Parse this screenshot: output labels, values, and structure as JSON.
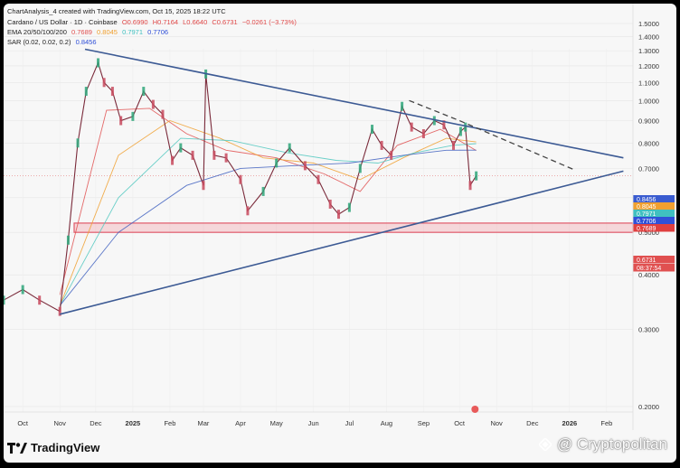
{
  "header": {
    "line1": "ChartAnalysis_4 created with TradingView.com, Oct 15, 2025 18:22 UTC",
    "symbol": "Cardano / US Dollar · 1D · Coinbase",
    "ohlc": {
      "o": "O0.6990",
      "h": "H0.7164",
      "l": "L0.6640",
      "c": "C0.6731",
      "chg": "−0.0261 (−3.73%)"
    },
    "ema_label": "EMA 20/50/100/200",
    "ema_values": [
      "0.7689",
      "0.8045",
      "0.7971",
      "0.7706"
    ],
    "sar_label": "SAR (0.02, 0.02, 0.2)",
    "sar_value": "0.8456"
  },
  "branding": {
    "tradingview": "TradingView",
    "watermark": "@ Cryptopolitan"
  },
  "colors": {
    "triangle": "#3c5a94",
    "support": "#e05a6a",
    "ema20": "#e05050",
    "ema50": "#f0a030",
    "ema100": "#50c8c0",
    "ema200": "#4060c0",
    "sar": "#333333"
  },
  "chart_data": {
    "type": "line",
    "title": "Cardano / US Dollar · 1D · Coinbase",
    "x_ticks": [
      "Oct",
      "Nov",
      "Dec",
      "2025",
      "Feb",
      "Mar",
      "Apr",
      "May",
      "Jun",
      "Jul",
      "Aug",
      "Sep",
      "Oct",
      "Nov",
      "Dec",
      "2026",
      "Feb"
    ],
    "y_ticks": [
      "1.5000",
      "1.4000",
      "1.3000",
      "1.2000",
      "1.1000",
      "1.0000",
      "0.9000",
      "0.8000",
      "0.7000",
      "0.6000",
      "0.5000",
      "0.4000",
      "0.3000",
      "0.2000"
    ],
    "ylim": [
      0.2,
      1.5
    ],
    "y_scale": "log",
    "series": [
      {
        "name": "Cardano / US Dollar",
        "x": [
          "2024-09-15",
          "2024-10-01",
          "2024-10-15",
          "2024-11-01",
          "2024-11-08",
          "2024-11-16",
          "2024-11-23",
          "2024-12-03",
          "2024-12-08",
          "2024-12-15",
          "2024-12-22",
          "2025-01-01",
          "2025-01-10",
          "2025-01-18",
          "2025-01-26",
          "2025-02-03",
          "2025-02-10",
          "2025-02-20",
          "2025-03-01",
          "2025-03-03",
          "2025-03-10",
          "2025-03-20",
          "2025-04-01",
          "2025-04-07",
          "2025-04-20",
          "2025-05-01",
          "2025-05-12",
          "2025-05-25",
          "2025-06-05",
          "2025-06-15",
          "2025-06-22",
          "2025-07-01",
          "2025-07-10",
          "2025-07-20",
          "2025-07-28",
          "2025-08-05",
          "2025-08-14",
          "2025-08-22",
          "2025-09-01",
          "2025-09-10",
          "2025-09-18",
          "2025-09-26",
          "2025-10-02",
          "2025-10-06",
          "2025-10-10",
          "2025-10-15"
        ],
        "values": [
          0.35,
          0.37,
          0.35,
          0.33,
          0.48,
          0.8,
          1.05,
          1.22,
          1.1,
          1.05,
          0.9,
          0.92,
          1.05,
          0.98,
          0.93,
          0.73,
          0.78,
          0.75,
          0.64,
          1.15,
          0.75,
          0.74,
          0.66,
          0.56,
          0.62,
          0.72,
          0.78,
          0.71,
          0.66,
          0.58,
          0.55,
          0.57,
          0.7,
          0.86,
          0.79,
          0.75,
          0.97,
          0.87,
          0.84,
          0.9,
          0.88,
          0.79,
          0.85,
          0.87,
          0.64,
          0.673
        ]
      },
      {
        "name": "EMA 20",
        "x": [
          "2024-11-01",
          "2024-12-10",
          "2025-01-15",
          "2025-02-15",
          "2025-03-20",
          "2025-05-01",
          "2025-06-10",
          "2025-07-10",
          "2025-08-10",
          "2025-09-15",
          "2025-10-15"
        ],
        "values": [
          0.36,
          0.95,
          0.96,
          0.84,
          0.77,
          0.74,
          0.68,
          0.62,
          0.79,
          0.86,
          0.7689
        ]
      },
      {
        "name": "EMA 50",
        "x": [
          "2024-11-01",
          "2024-12-20",
          "2025-02-01",
          "2025-03-15",
          "2025-04-20",
          "2025-06-01",
          "2025-07-10",
          "2025-08-15",
          "2025-09-20",
          "2025-10-15"
        ],
        "values": [
          0.34,
          0.75,
          0.9,
          0.82,
          0.74,
          0.72,
          0.66,
          0.74,
          0.82,
          0.8045
        ]
      },
      {
        "name": "EMA 100",
        "x": [
          "2024-11-01",
          "2024-12-20",
          "2025-02-10",
          "2025-03-25",
          "2025-05-10",
          "2025-06-20",
          "2025-07-25",
          "2025-08-25",
          "2025-09-25",
          "2025-10-15"
        ],
        "values": [
          0.34,
          0.6,
          0.82,
          0.81,
          0.76,
          0.73,
          0.72,
          0.76,
          0.79,
          0.7971
        ]
      },
      {
        "name": "EMA 200",
        "x": [
          "2024-11-01",
          "2024-12-20",
          "2025-02-15",
          "2025-04-01",
          "2025-05-15",
          "2025-07-01",
          "2025-08-15",
          "2025-09-20",
          "2025-10-15"
        ],
        "values": [
          0.34,
          0.5,
          0.64,
          0.7,
          0.71,
          0.72,
          0.75,
          0.77,
          0.7706
        ]
      }
    ],
    "trendlines": [
      {
        "name": "descending resistance",
        "x": [
          "2024-11-22",
          "2026-02-15"
        ],
        "values": [
          1.31,
          0.74
        ],
        "style": "solid"
      },
      {
        "name": "ascending support",
        "x": [
          "2024-11-01",
          "2026-02-15"
        ],
        "values": [
          0.325,
          0.69
        ],
        "style": "solid"
      },
      {
        "name": "projected path",
        "x": [
          "2025-08-20",
          "2025-10-01",
          "2026-01-05"
        ],
        "values": [
          1.0,
          0.9,
          0.695
        ],
        "style": "dashed"
      }
    ],
    "support_zone": {
      "from": 0.5,
      "to": 0.525
    },
    "price_labels": [
      {
        "text": "0.8456",
        "value": 0.8456,
        "color": "#3a5cd0"
      },
      {
        "text": "0.8045",
        "value": 0.8045,
        "color": "#f0a030"
      },
      {
        "text": "0.7971",
        "value": 0.7971,
        "color": "#40c0c0"
      },
      {
        "text": "0.7706",
        "value": 0.7706,
        "color": "#3050d8"
      },
      {
        "text": "0.7689",
        "value": 0.7689,
        "color": "#e04040"
      },
      {
        "text": "0.6731",
        "value": 0.6731,
        "color": "#e05050"
      },
      {
        "text": "08:37:54",
        "value": 0.645,
        "color": "#e05050"
      }
    ],
    "grid": true
  }
}
